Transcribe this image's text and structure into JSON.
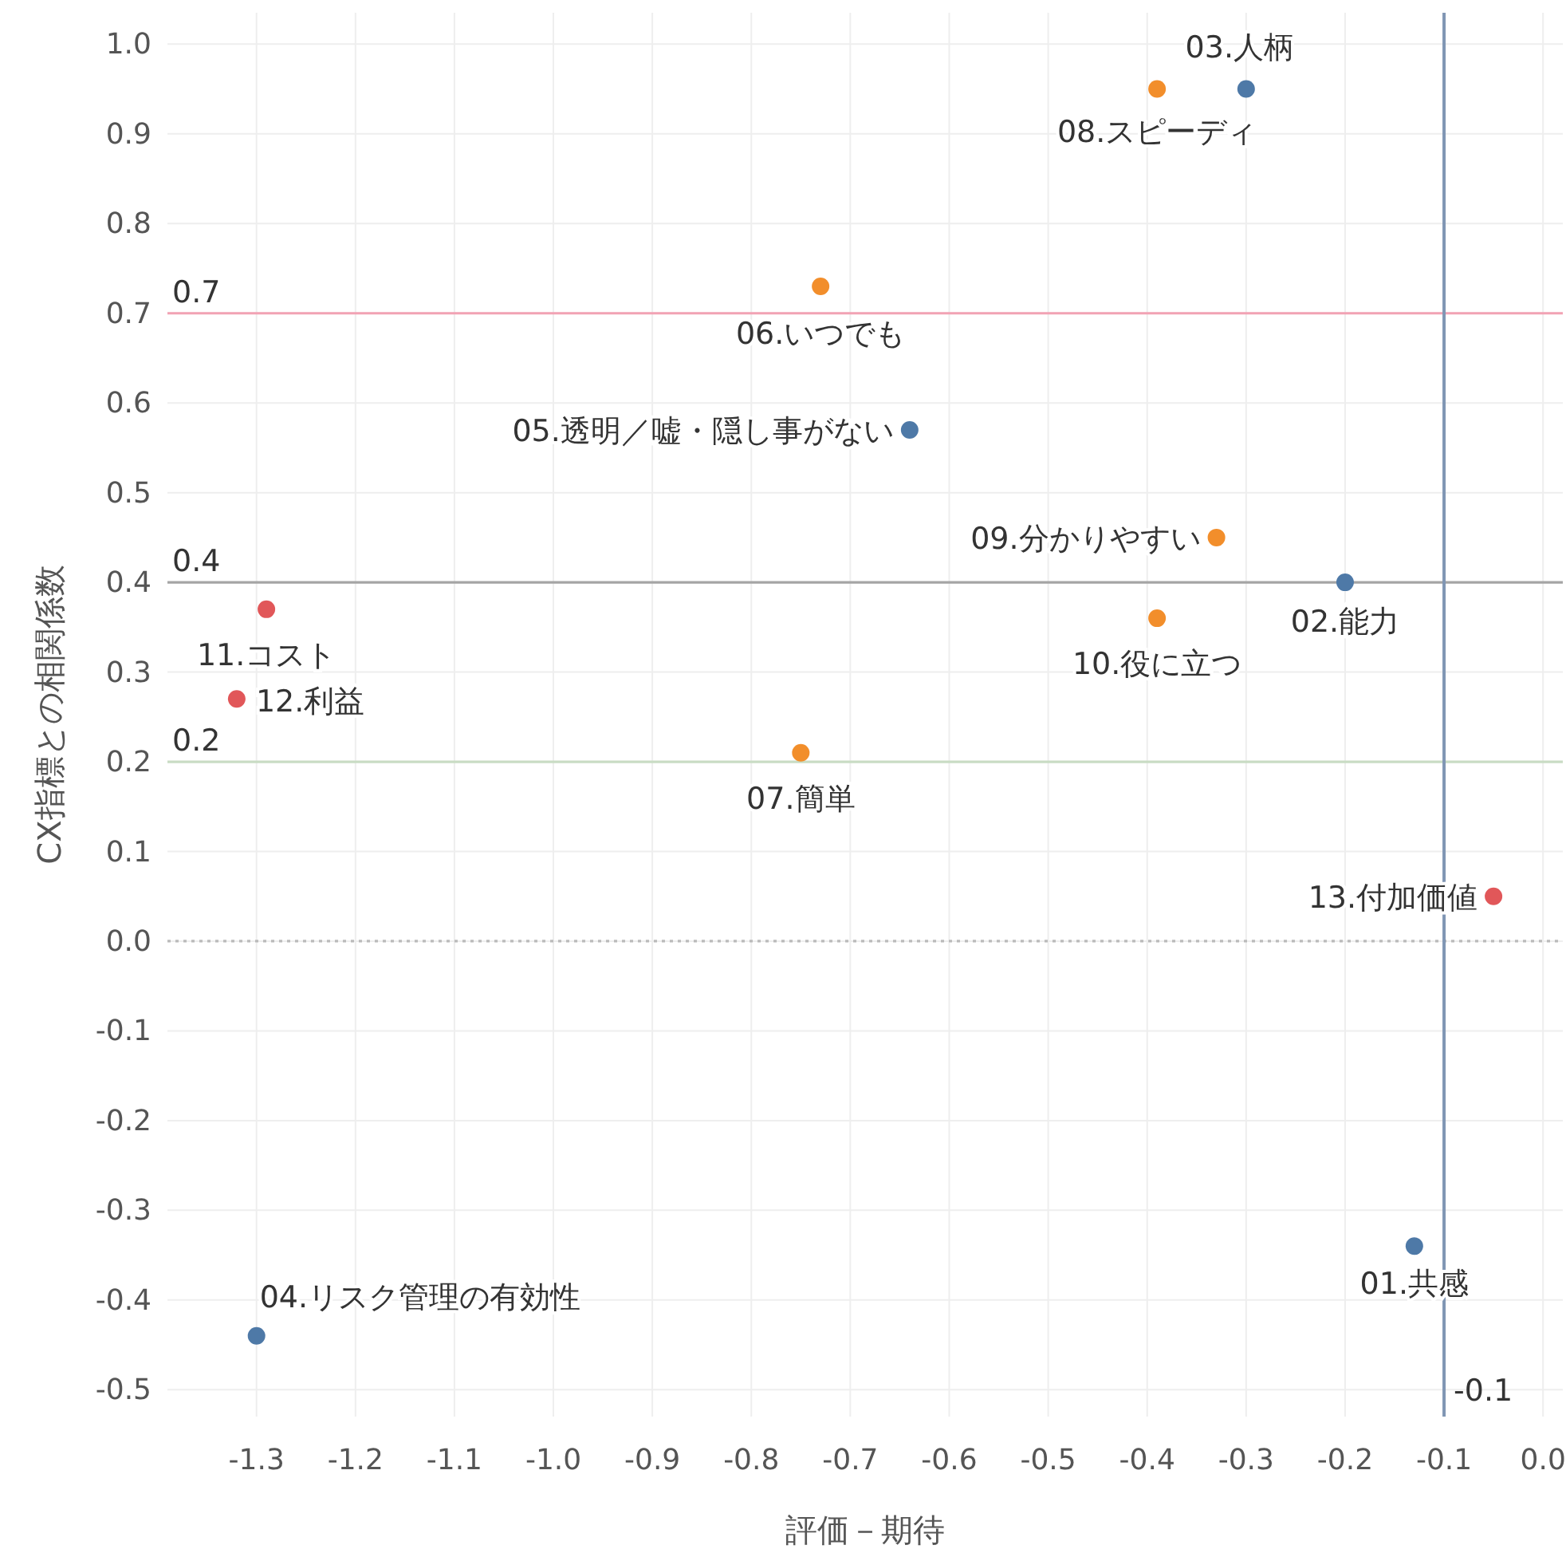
{
  "chart_data": {
    "type": "scatter",
    "xlabel": "評価－期待",
    "ylabel": "CX指標との相関係数",
    "xlim": [
      -1.39,
      0.02
    ],
    "ylim": [
      -0.53,
      1.035
    ],
    "xticks": [
      -1.3,
      -1.2,
      -1.1,
      {
        "value": -1,
        "label": "-1.0"
      },
      -0.9,
      -0.8,
      -0.7,
      -0.6,
      -0.5,
      -0.4,
      -0.3,
      -0.2,
      -0.1,
      {
        "value": 0,
        "label": "0.0"
      }
    ],
    "yticks": [
      -0.5,
      -0.4,
      -0.3,
      -0.2,
      -0.1,
      {
        "value": 0,
        "label": "0.0"
      },
      0.1,
      0.2,
      0.3,
      0.4,
      0.5,
      0.6,
      0.7,
      0.8,
      0.9,
      {
        "value": 1,
        "label": "1.0"
      }
    ],
    "grid": true,
    "marker": "circle",
    "series": [
      {
        "x": [
          -0.13,
          -0.2,
          -0.3,
          -1.3,
          -0.64,
          -0.73,
          -0.75,
          -0.39,
          -0.33,
          -0.39,
          -1.29,
          -1.32,
          -0.05
        ],
        "values": [
          -0.34,
          0.4,
          0.95,
          -0.44,
          0.57,
          0.73,
          0.21,
          0.95,
          0.45,
          0.36,
          0.37,
          0.27,
          0.05
        ],
        "colors": [
          "#4e79a7",
          "#4e79a7",
          "#4e79a7",
          "#4e79a7",
          "#4e79a7",
          "#f28e2b",
          "#f28e2b",
          "#f28e2b",
          "#f28e2b",
          "#f28e2b",
          "#e15759",
          "#e15759",
          "#e15759"
        ]
      }
    ],
    "annotations": [
      {
        "text": "01.共感",
        "x": -0.13,
        "y": -0.34
      },
      {
        "text": "02.能力",
        "x": -0.2,
        "y": 0.4
      },
      {
        "text": "03.人柄",
        "x": -0.3,
        "y": 0.95
      },
      {
        "text": "04.リスク管理の有効性",
        "x": -1.3,
        "y": -0.44
      },
      {
        "text": "05.透明／嘘・隠し事がない",
        "x": -0.64,
        "y": 0.57
      },
      {
        "text": "06.いつでも",
        "x": -0.73,
        "y": 0.73
      },
      {
        "text": "07.簡単",
        "x": -0.75,
        "y": 0.21
      },
      {
        "text": "08.スピーディ",
        "x": -0.39,
        "y": 0.95
      },
      {
        "text": "09.分かりやすい",
        "x": -0.33,
        "y": 0.45
      },
      {
        "text": "10.役に立つ",
        "x": -0.39,
        "y": 0.36
      },
      {
        "text": "11.コスト",
        "x": -1.29,
        "y": 0.37
      },
      {
        "text": "12.利益",
        "x": -1.32,
        "y": 0.27
      },
      {
        "text": "13.付加価値",
        "x": -0.05,
        "y": 0.05
      }
    ],
    "ref_lines": [
      {
        "axis": "y",
        "value": 0.7,
        "label": "0.7",
        "color": "#f2a2b4",
        "line_style": "solid"
      },
      {
        "axis": "y",
        "value": 0.4,
        "label": "0.4",
        "color": "#a5a5a5",
        "line_style": "solid"
      },
      {
        "axis": "y",
        "value": 0.2,
        "label": "0.2",
        "color": "#c9dcc4",
        "line_style": "solid"
      },
      {
        "axis": "y",
        "value": 0.0,
        "color": "#bbbbbb",
        "line_style": "dotted"
      },
      {
        "axis": "x",
        "value": -0.1,
        "label": "-0.1",
        "color": "#8096b4",
        "line_style": "solid"
      }
    ]
  }
}
